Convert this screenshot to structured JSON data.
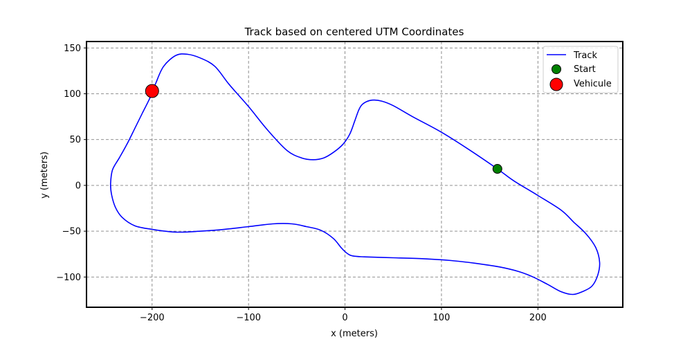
{
  "chart_data": {
    "type": "line",
    "title": "Track based on centered UTM Coordinates",
    "xlabel": "x (meters)",
    "ylabel": "y (meters)",
    "xlim": [
      -268,
      288
    ],
    "ylim": [
      -133,
      157
    ],
    "xticks": [
      -200,
      -100,
      0,
      100,
      200
    ],
    "yticks": [
      -100,
      -50,
      0,
      50,
      100,
      150
    ],
    "xtick_labels": [
      "−200",
      "−100",
      "0",
      "100",
      "200"
    ],
    "ytick_labels": [
      "−100",
      "−50",
      "0",
      "50",
      "100",
      "150"
    ],
    "grid": true,
    "legend_position": "top-right",
    "colors": {
      "track": "#0000ff",
      "start": "#008000",
      "vehicle": "#ff0000",
      "grid": "#808080"
    },
    "series": [
      {
        "name": "Track",
        "x": [
          158,
          175,
          200,
          224,
          237,
          250,
          260,
          264,
          262,
          256,
          246,
          236,
          224,
          210,
          195,
          180,
          160,
          135,
          110,
          80,
          50,
          20,
          8,
          2,
          -4,
          -12,
          -25,
          -40,
          -55,
          -75,
          -100,
          -125,
          -150,
          -175,
          -200,
          -218,
          -231,
          -238,
          -242,
          -243,
          -241,
          -234,
          -226,
          -218,
          -210,
          -202,
          -196,
          -188,
          -175,
          -163,
          -150,
          -135,
          -120,
          -100,
          -80,
          -60,
          -45,
          -33,
          -22,
          -12,
          -2,
          5,
          10,
          15,
          20,
          28,
          38,
          50,
          70,
          100,
          130,
          158
        ],
        "y": [
          18,
          5,
          -11,
          -27,
          -40,
          -53,
          -68,
          -84,
          -98,
          -110,
          -116,
          -119,
          -116,
          -108,
          -100,
          -94,
          -89,
          -85,
          -82,
          -80,
          -79,
          -78,
          -77,
          -74,
          -68,
          -58,
          -49,
          -45,
          -42,
          -42,
          -45,
          -48,
          -50,
          -51,
          -48,
          -44,
          -35,
          -24,
          -10,
          2,
          17,
          30,
          45,
          62,
          79,
          96,
          112,
          130,
          142,
          143,
          139,
          130,
          110,
          86,
          60,
          38,
          30,
          28,
          30,
          36,
          45,
          56,
          70,
          84,
          90,
          93,
          92,
          87,
          75,
          58,
          38,
          18
        ]
      },
      {
        "name": "Start",
        "x": [
          158
        ],
        "y": [
          18
        ]
      },
      {
        "name": "Vehicule",
        "x": [
          -200
        ],
        "y": [
          103
        ]
      }
    ]
  }
}
